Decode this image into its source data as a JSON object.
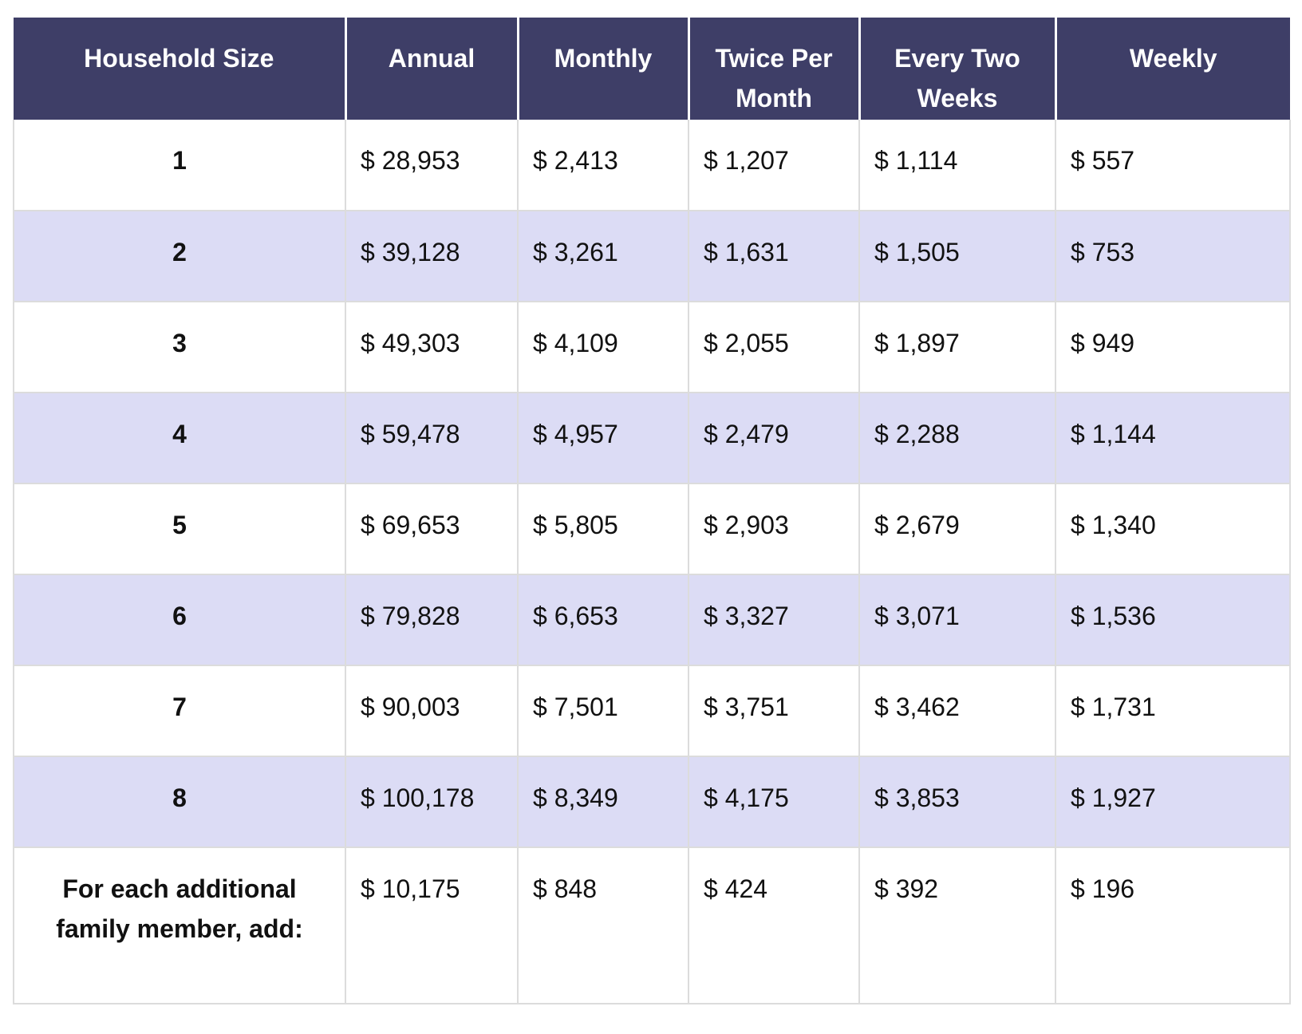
{
  "colors": {
    "header_bg": "#3e3e67",
    "header_text": "#ffffff",
    "stripe_bg": "#dcdcf5",
    "row_bg": "#ffffff",
    "grid_line": "#dcdcdc",
    "body_text": "#111111"
  },
  "table": {
    "headers": {
      "household_size": "Household Size",
      "annual": "Annual",
      "monthly": "Monthly",
      "twice_per_month": "Twice Per Month",
      "every_two_weeks": "Every Two Weeks",
      "weekly": "Weekly"
    },
    "rows": [
      {
        "cells": [
          "1",
          "$ 28,953",
          "$ 2,413",
          "$ 1,207",
          "$ 1,114",
          "$ 557"
        ]
      },
      {
        "cells": [
          "2",
          "$ 39,128",
          "$ 3,261",
          "$ 1,631",
          "$ 1,505",
          "$ 753"
        ]
      },
      {
        "cells": [
          "3",
          "$ 49,303",
          "$ 4,109",
          "$ 2,055",
          "$ 1,897",
          "$ 949"
        ]
      },
      {
        "cells": [
          "4",
          "$ 59,478",
          "$ 4,957",
          "$ 2,479",
          "$ 2,288",
          "$ 1,144"
        ]
      },
      {
        "cells": [
          "5",
          "$ 69,653",
          "$ 5,805",
          "$ 2,903",
          "$ 2,679",
          "$ 1,340"
        ]
      },
      {
        "cells": [
          "6",
          "$ 79,828",
          "$ 6,653",
          "$ 3,327",
          "$ 3,071",
          "$ 1,536"
        ]
      },
      {
        "cells": [
          "7",
          "$ 90,003",
          "$ 7,501",
          "$ 3,751",
          "$ 3,462",
          "$ 1,731"
        ]
      },
      {
        "cells": [
          "8",
          "$ 100,178",
          "$ 8,349",
          "$ 4,175",
          "$ 3,853",
          "$ 1,927"
        ]
      },
      {
        "cells": [
          "For each additional family member, add:",
          "$ 10,175",
          "$ 848",
          "$ 424",
          "$ 392",
          "$ 196"
        ]
      }
    ]
  }
}
